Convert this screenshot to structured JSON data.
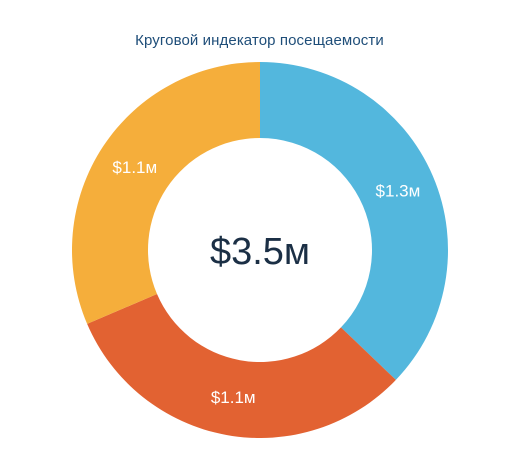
{
  "chart_data": {
    "type": "pie",
    "title": "Круговой индекатор посещаемости",
    "center_label": "$3.5м",
    "categories": [
      "",
      "",
      ""
    ],
    "values": [
      1.3,
      1.1,
      1.1
    ],
    "value_labels": [
      "$1.3м",
      "$1.1м",
      "$1.1м"
    ],
    "colors": [
      "#53b7dd",
      "#e26232",
      "#f5ae3b"
    ],
    "unit": "$ млн",
    "grid": false,
    "legend": "none"
  }
}
